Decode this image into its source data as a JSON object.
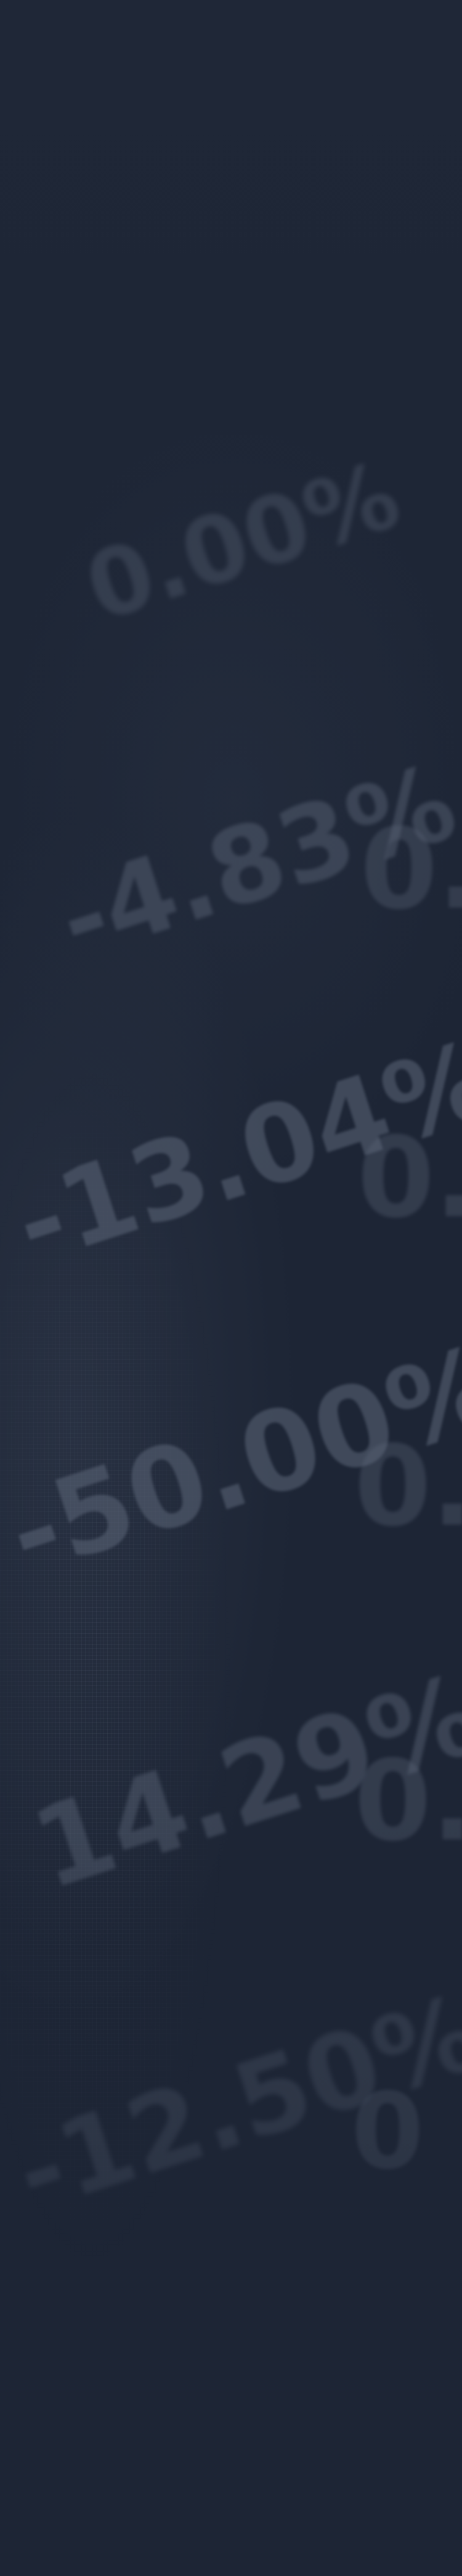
{
  "background": {
    "base_color": "#1d2535",
    "text_color": "#5d6779"
  },
  "tickers": [
    {
      "value": "0.00%"
    },
    {
      "value": "-4.83%"
    },
    {
      "value": "-13.04%"
    },
    {
      "value": "-50.00%"
    },
    {
      "value": "14.29%"
    },
    {
      "value": "-12.50%"
    }
  ],
  "side_tickers": [
    {
      "value": "0."
    },
    {
      "value": "0."
    },
    {
      "value": "0."
    },
    {
      "value": "0."
    },
    {
      "value": "0"
    }
  ]
}
